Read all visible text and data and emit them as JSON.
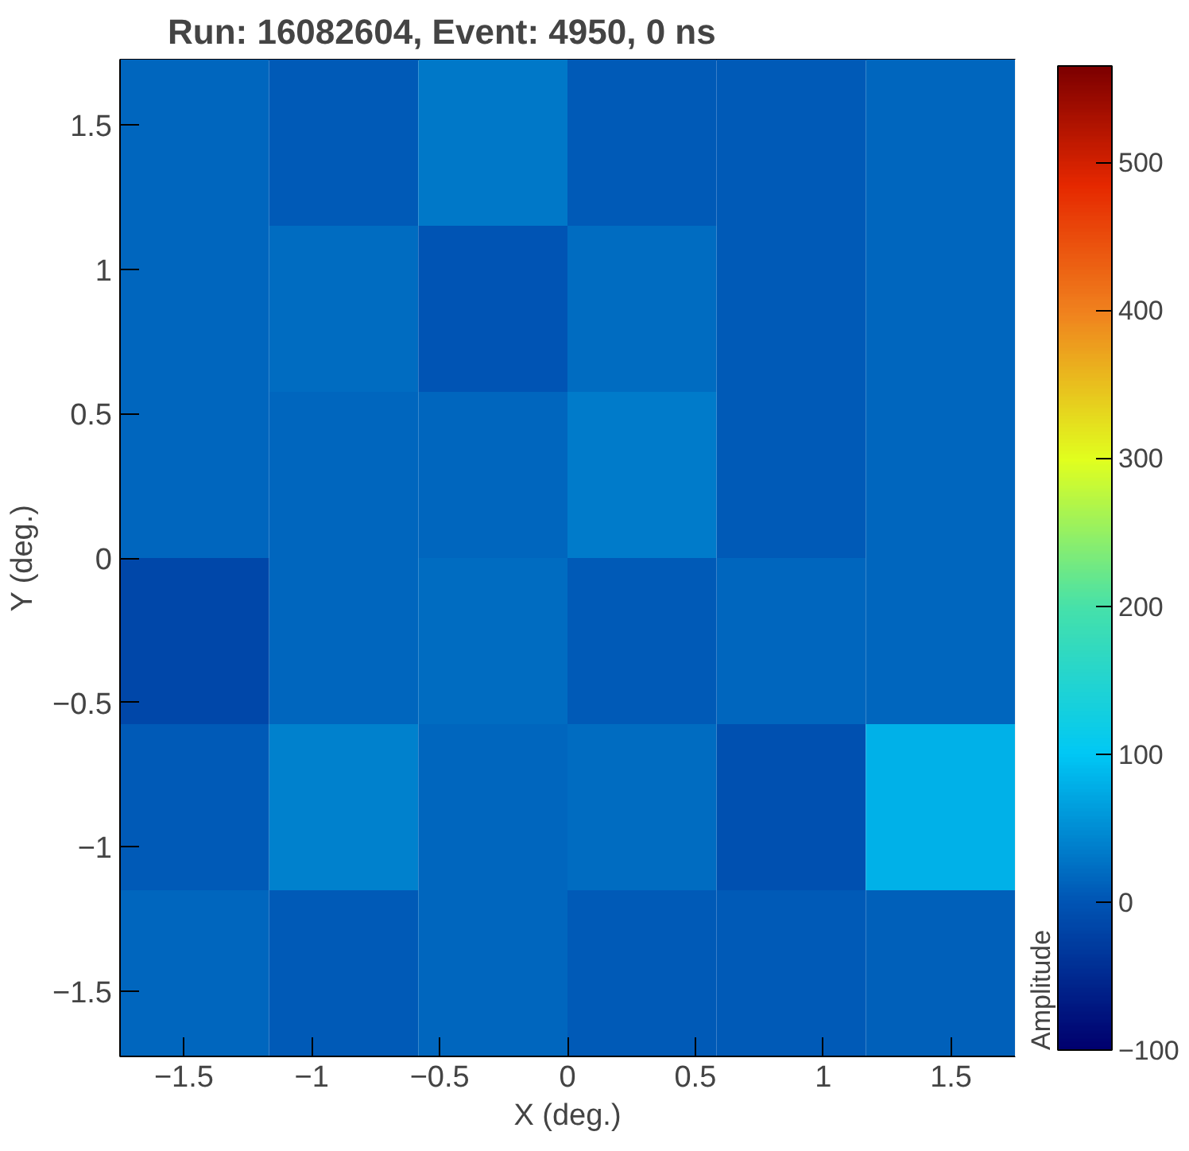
{
  "chart_data": {
    "type": "heatmap",
    "title": "Run: 16082604, Event: 4950, 0 ns",
    "xlabel": "X (deg.)",
    "ylabel": "Y (deg.)",
    "clabel": "Amplitude",
    "cells": [
      [
        15,
        5,
        30,
        5,
        5,
        15
      ],
      [
        15,
        20,
        0,
        20,
        5,
        15
      ],
      [
        15,
        15,
        15,
        35,
        5,
        15
      ],
      [
        -15,
        15,
        20,
        5,
        15,
        15
      ],
      [
        5,
        40,
        15,
        20,
        -5,
        80
      ],
      [
        15,
        5,
        15,
        5,
        5,
        10
      ]
    ],
    "xlim": [
      -1.75,
      1.75
    ],
    "ylim": [
      -1.725,
      1.725
    ],
    "xticks": [
      {
        "value": -1.5,
        "label": "−1.5"
      },
      {
        "value": -1,
        "label": "−1"
      },
      {
        "value": -0.5,
        "label": "−0.5"
      },
      0,
      0.5,
      1,
      1.5
    ],
    "yticks": [
      {
        "value": -1.5,
        "label": "−1.5"
      },
      {
        "value": -1,
        "label": "−1"
      },
      {
        "value": -0.5,
        "label": "−0.5"
      },
      0,
      0.5,
      1,
      1.5
    ],
    "clim": [
      -100,
      565
    ],
    "cticks": [
      {
        "value": -100,
        "label": "−100"
      },
      0,
      100,
      200,
      300,
      400,
      500
    ]
  }
}
